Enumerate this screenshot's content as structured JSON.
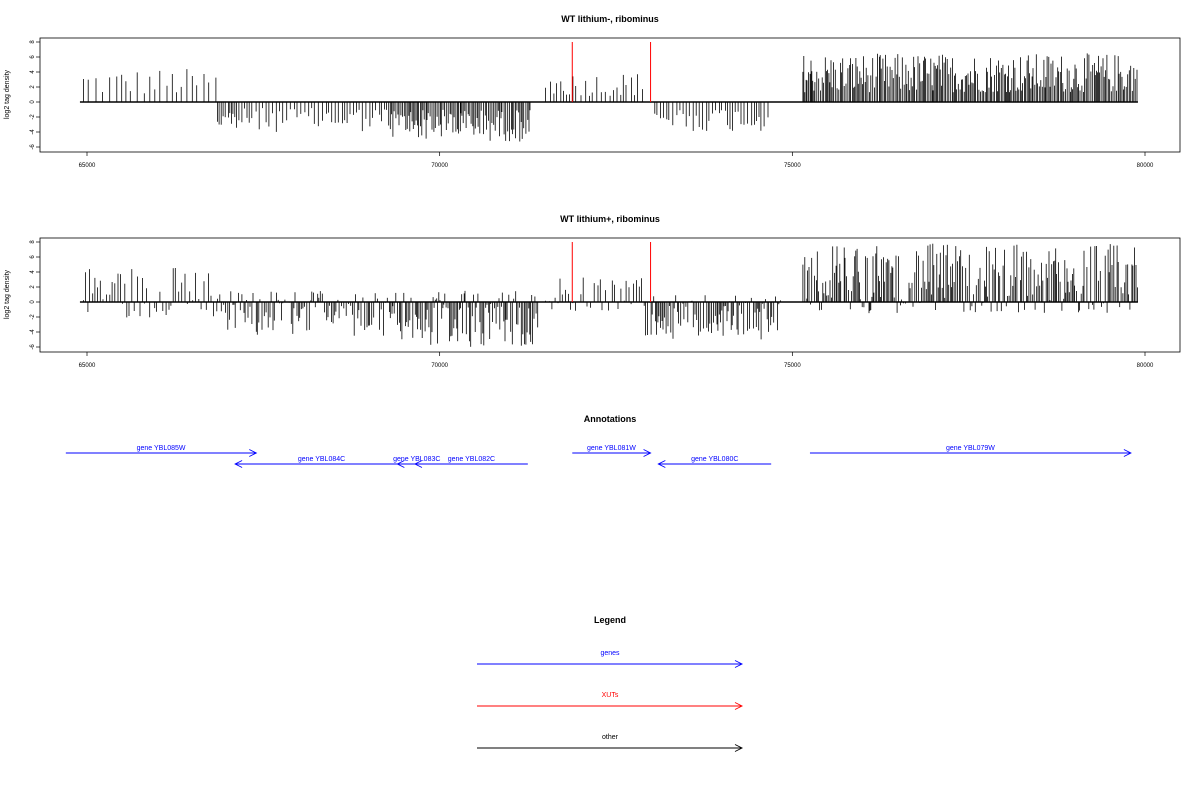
{
  "chart_data": [
    {
      "type": "bar",
      "title": "WT lithium-, ribominus",
      "ylabel": "log2 tag density",
      "xlabel": "",
      "xlim": [
        64900,
        79900
      ],
      "ylim": [
        -6,
        8
      ],
      "xticks": [
        65000,
        70000,
        75000,
        80000
      ],
      "yticks": [
        8,
        6,
        4,
        2,
        0,
        -2,
        -4,
        -6
      ],
      "grid": false,
      "xut_lines": [
        71880,
        72990
      ],
      "segments": [
        {
          "x0": 64950,
          "x1": 66850,
          "min": 0,
          "max": 4.5,
          "density": 0.25
        },
        {
          "x0": 66850,
          "x1": 67300,
          "min": -4.2,
          "max": 0,
          "density": 0.6
        },
        {
          "x0": 67300,
          "x1": 69300,
          "min": -4.0,
          "max": 0,
          "density": 0.45
        },
        {
          "x0": 69300,
          "x1": 70300,
          "min": -5.0,
          "max": 0,
          "density": 1.0
        },
        {
          "x0": 70300,
          "x1": 71300,
          "min": -5.3,
          "max": 0,
          "density": 0.9
        },
        {
          "x0": 71500,
          "x1": 72950,
          "min": 0,
          "max": 4.0,
          "density": 0.35
        },
        {
          "x0": 73050,
          "x1": 74700,
          "min": -4.0,
          "max": 0,
          "density": 0.45
        },
        {
          "x0": 75150,
          "x1": 79900,
          "min": 0,
          "max": 6.5,
          "density": 1.0
        }
      ]
    },
    {
      "type": "bar",
      "title": "WT lithium+, ribominus",
      "ylabel": "log2 tag density",
      "xlabel": "",
      "xlim": [
        64900,
        79900
      ],
      "ylim": [
        -6,
        8
      ],
      "xticks": [
        65000,
        70000,
        75000,
        80000
      ],
      "yticks": [
        8,
        6,
        4,
        2,
        0,
        -2,
        -4,
        -6
      ],
      "grid": false,
      "xut_lines": [
        71880,
        72990
      ],
      "segments": [
        {
          "x0": 64950,
          "x1": 66850,
          "min": -2.2,
          "max": 4.8,
          "density": 0.55
        },
        {
          "x0": 66850,
          "x1": 69300,
          "min": -4.5,
          "max": 1.5,
          "density": 0.8
        },
        {
          "x0": 69300,
          "x1": 71400,
          "min": -6.0,
          "max": 1.5,
          "density": 1.0
        },
        {
          "x0": 71500,
          "x1": 72900,
          "min": -2.0,
          "max": 3.5,
          "density": 0.5
        },
        {
          "x0": 72900,
          "x1": 74850,
          "min": -5.0,
          "max": 1.0,
          "density": 0.9
        },
        {
          "x0": 75150,
          "x1": 79900,
          "min": -1.5,
          "max": 7.8,
          "density": 1.0
        }
      ]
    }
  ],
  "annotations": {
    "title": "Annotations",
    "genes": [
      {
        "label": "gene YBL085W",
        "x0": 64700,
        "x1": 67400,
        "dir": "right",
        "row": 0
      },
      {
        "label": "gene YBL084C",
        "x0": 67100,
        "x1": 69550,
        "dir": "left",
        "row": 1
      },
      {
        "label": "gene YBL083C",
        "x0": 69400,
        "x1": 69950,
        "dir": "left",
        "row": 1
      },
      {
        "label": "gene YBL082C",
        "x0": 69650,
        "x1": 71250,
        "dir": "left",
        "row": 1
      },
      {
        "label": "gene YBL081W",
        "x0": 71880,
        "x1": 72990,
        "dir": "right",
        "row": 0
      },
      {
        "label": "gene YBL080C",
        "x0": 73100,
        "x1": 74700,
        "dir": "left",
        "row": 1
      },
      {
        "label": "gene YBL079W",
        "x0": 75250,
        "x1": 79800,
        "dir": "right",
        "row": 0
      }
    ]
  },
  "legend": {
    "title": "Legend",
    "items": [
      {
        "label": "genes",
        "color": "#0000ff"
      },
      {
        "label": "XUTs",
        "color": "#ff0000"
      },
      {
        "label": "other",
        "color": "#000000"
      }
    ]
  }
}
